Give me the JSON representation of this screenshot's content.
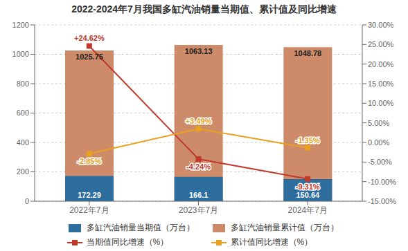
{
  "chart_data": {
    "type": "bar",
    "title": "2022-2024年7月我国多缸汽油销量当期值、累计值及同比增速",
    "categories": [
      "2022年7月",
      "2023年7月",
      "2024年7月"
    ],
    "series": [
      {
        "name": "多缸汽油销量当期值（万台）",
        "type": "bar",
        "color": "#2E6E9E",
        "values": [
          172.29,
          166.1,
          150.64
        ],
        "data_labels": true
      },
      {
        "name": "多缸汽油销量累计值（万台）",
        "type": "bar",
        "color": "#CD8B6A",
        "values": [
          1025.75,
          1063.13,
          1048.78
        ],
        "data_labels": true
      },
      {
        "name": "当期值同比增速（%）",
        "type": "line",
        "axis": "y2",
        "color": "#C0392B",
        "marker": "square",
        "values": [
          24.62,
          -4.24,
          -9.31
        ],
        "value_labels": [
          "+24.62%",
          "-4.24%",
          "-9.31%"
        ],
        "data_labels": true
      },
      {
        "name": "累计值同比增速（%）",
        "type": "line",
        "axis": "y2",
        "color": "#E8A020",
        "marker": "square",
        "values": [
          -2.85,
          3.49,
          -1.35
        ],
        "value_labels": [
          "-2.85%",
          "+3.49%",
          "-1.35%"
        ],
        "data_labels": true
      }
    ],
    "ylim": [
      0,
      1200
    ],
    "yticks": [
      0,
      200,
      400,
      600,
      800,
      1000,
      1200
    ],
    "y2lim": [
      -15,
      30
    ],
    "y2ticks": [
      {
        "value": -15,
        "label": "-15.00%"
      },
      {
        "value": -10,
        "label": "-10.00%"
      },
      {
        "value": -5,
        "label": "-5.00%"
      },
      {
        "value": 0,
        "label": "0.00%"
      },
      {
        "value": 5,
        "label": "5.00%"
      },
      {
        "value": 10,
        "label": "10.00%"
      },
      {
        "value": 15,
        "label": "15.00%"
      },
      {
        "value": 20,
        "label": "20.00%"
      },
      {
        "value": 25,
        "label": "25.00%"
      },
      {
        "value": 30,
        "label": "30.00%"
      }
    ],
    "grid": true
  }
}
